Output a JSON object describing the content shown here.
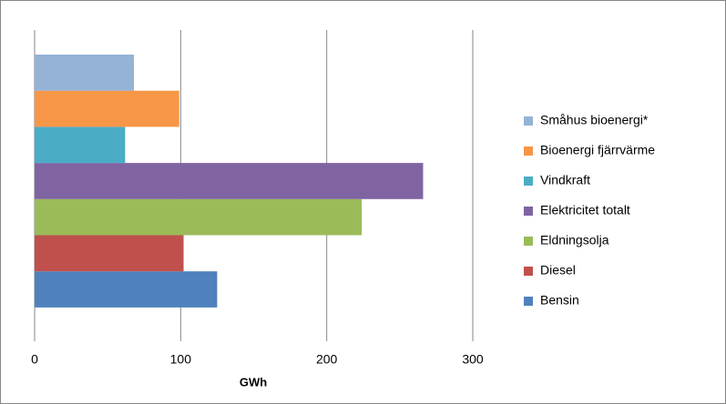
{
  "chart_data": {
    "type": "bar",
    "orientation": "horizontal",
    "categories": [
      null
    ],
    "series": [
      {
        "name": "Bensin",
        "color": "#4f81bd",
        "values": [
          125
        ]
      },
      {
        "name": "Diesel",
        "color": "#c0504d",
        "values": [
          102
        ]
      },
      {
        "name": "Eldningsolja",
        "color": "#9bbb59",
        "values": [
          224
        ]
      },
      {
        "name": "Elektricitet totalt",
        "color": "#8064a2",
        "values": [
          266
        ]
      },
      {
        "name": "Vindkraft",
        "color": "#4bacc6",
        "values": [
          62
        ]
      },
      {
        "name": "Bioenergi fjärrvärme",
        "color": "#f79646",
        "values": [
          99
        ]
      },
      {
        "name": "Småhus bioenergi*",
        "color": "#95b3d7",
        "values": [
          68
        ]
      }
    ],
    "xlabel": "GWh",
    "xlim": [
      0,
      300
    ],
    "xticks": [
      0,
      100,
      200,
      300
    ],
    "grid": true,
    "legend": "right"
  }
}
